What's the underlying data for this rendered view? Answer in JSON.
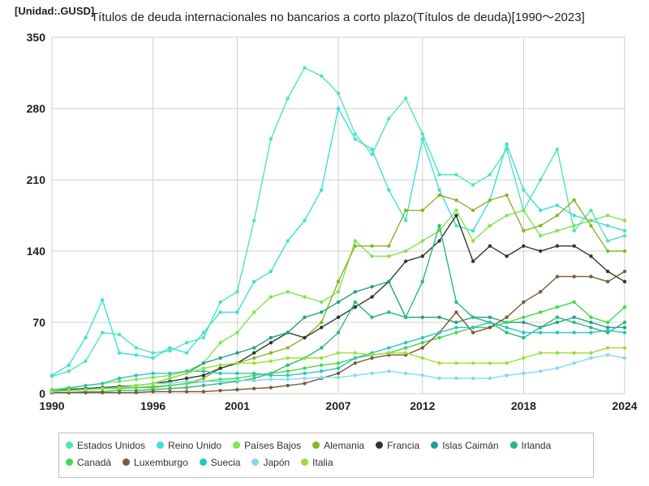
{
  "chart_data": {
    "type": "line",
    "unit_label": "[Unidad:.GUSD]",
    "title": "Títulos de deuda internacionales no bancarios a corto plazo(Títulos de deuda)[1990～2023]",
    "xlabel": "",
    "ylabel": "",
    "x_ticks": [
      "1990",
      "1996",
      "2001",
      "2007",
      "2012",
      "2018",
      "2024"
    ],
    "x_tick_values": [
      1990,
      1996,
      2001,
      2007,
      2012,
      2018,
      2024
    ],
    "y_ticks": [
      "0",
      "70",
      "140",
      "210",
      "280",
      "350"
    ],
    "y_tick_values": [
      0,
      70,
      140,
      210,
      280,
      350
    ],
    "xlim": [
      1990,
      2024
    ],
    "ylim": [
      0,
      350
    ],
    "grid": true,
    "legend_position": "bottom",
    "x": [
      1990,
      1991,
      1992,
      1993,
      1994,
      1995,
      1996,
      1997,
      1998,
      1999,
      2000,
      2001,
      2002,
      2003,
      2004,
      2005,
      2006,
      2007,
      2008,
      2009,
      2010,
      2011,
      2012,
      2013,
      2014,
      2015,
      2016,
      2017,
      2018,
      2019,
      2020,
      2021,
      2022,
      2023,
      2024
    ],
    "series": [
      {
        "name": "Estados Unidos",
        "color": "#4ee6b6",
        "values": [
          17,
          22,
          32,
          60,
          58,
          45,
          40,
          42,
          50,
          55,
          90,
          100,
          170,
          250,
          290,
          320,
          312,
          295,
          255,
          235,
          270,
          290,
          255,
          215,
          215,
          205,
          215,
          240,
          180,
          210,
          240,
          160,
          180,
          150,
          155
        ]
      },
      {
        "name": "Reino Unido",
        "color": "#3ee0d6",
        "values": [
          18,
          28,
          55,
          92,
          40,
          38,
          35,
          45,
          40,
          60,
          80,
          80,
          110,
          120,
          150,
          170,
          200,
          280,
          250,
          240,
          200,
          170,
          250,
          200,
          165,
          160,
          190,
          245,
          200,
          180,
          185,
          175,
          170,
          165,
          160
        ]
      },
      {
        "name": "Países Bajos",
        "color": "#7ee64e",
        "values": [
          4,
          6,
          8,
          10,
          12,
          14,
          16,
          18,
          22,
          30,
          50,
          60,
          80,
          95,
          100,
          95,
          90,
          100,
          150,
          135,
          135,
          140,
          150,
          160,
          180,
          150,
          165,
          175,
          180,
          155,
          160,
          165,
          170,
          175,
          170
        ]
      },
      {
        "name": "Alemania",
        "color": "#8ab52a",
        "values": [
          2,
          3,
          4,
          5,
          5,
          6,
          6,
          8,
          10,
          15,
          25,
          30,
          35,
          40,
          45,
          55,
          70,
          110,
          145,
          145,
          145,
          180,
          180,
          195,
          190,
          180,
          190,
          195,
          160,
          165,
          175,
          190,
          165,
          140,
          140
        ]
      },
      {
        "name": "Francia",
        "color": "#2b3a2b",
        "values": [
          3,
          4,
          5,
          6,
          7,
          8,
          10,
          12,
          15,
          18,
          25,
          30,
          40,
          50,
          60,
          55,
          65,
          75,
          85,
          95,
          110,
          130,
          135,
          150,
          175,
          130,
          145,
          135,
          145,
          140,
          145,
          145,
          135,
          120,
          110
        ]
      },
      {
        "name": "Islas Caimán",
        "color": "#23a08a",
        "values": [
          2,
          3,
          4,
          5,
          6,
          8,
          10,
          15,
          20,
          30,
          35,
          40,
          45,
          55,
          60,
          75,
          80,
          90,
          100,
          105,
          110,
          75,
          75,
          75,
          70,
          75,
          75,
          70,
          70,
          65,
          70,
          75,
          70,
          65,
          65
        ]
      },
      {
        "name": "Irlanda",
        "color": "#2eb87a",
        "values": [
          1,
          1,
          2,
          2,
          3,
          3,
          4,
          5,
          6,
          8,
          10,
          12,
          15,
          20,
          28,
          35,
          45,
          60,
          90,
          75,
          80,
          75,
          110,
          165,
          90,
          75,
          70,
          60,
          55,
          65,
          75,
          70,
          65,
          60,
          70
        ]
      },
      {
        "name": "Canadá",
        "color": "#44d94a",
        "values": [
          2,
          3,
          4,
          5,
          5,
          6,
          7,
          8,
          10,
          12,
          14,
          15,
          18,
          20,
          22,
          25,
          28,
          30,
          35,
          38,
          40,
          45,
          50,
          55,
          60,
          65,
          65,
          70,
          75,
          80,
          85,
          90,
          75,
          70,
          85
        ]
      },
      {
        "name": "Luxemburgo",
        "color": "#7a5a3a",
        "values": [
          1,
          1,
          1,
          1,
          1,
          1,
          2,
          2,
          2,
          2,
          3,
          4,
          5,
          6,
          8,
          10,
          15,
          20,
          30,
          35,
          38,
          38,
          45,
          60,
          80,
          60,
          65,
          75,
          90,
          100,
          115,
          115,
          115,
          110,
          120
        ]
      },
      {
        "name": "Suecia",
        "color": "#2cc3c8",
        "values": [
          3,
          5,
          8,
          10,
          15,
          18,
          20,
          20,
          22,
          22,
          20,
          20,
          20,
          18,
          18,
          20,
          22,
          25,
          35,
          40,
          45,
          50,
          55,
          60,
          65,
          65,
          70,
          65,
          60,
          60,
          60,
          60,
          60,
          62,
          60
        ]
      },
      {
        "name": "Japón",
        "color": "#86d7f0",
        "values": [
          2,
          3,
          4,
          5,
          6,
          8,
          10,
          10,
          12,
          12,
          12,
          13,
          13,
          14,
          14,
          15,
          16,
          16,
          18,
          20,
          22,
          20,
          18,
          15,
          15,
          15,
          15,
          18,
          20,
          22,
          25,
          30,
          35,
          38,
          35
        ]
      },
      {
        "name": "Italia",
        "color": "#9be03a",
        "values": [
          2,
          3,
          4,
          5,
          6,
          8,
          10,
          15,
          20,
          25,
          28,
          30,
          30,
          32,
          35,
          35,
          35,
          40,
          40,
          38,
          40,
          40,
          35,
          30,
          30,
          30,
          30,
          30,
          35,
          40,
          40,
          40,
          40,
          45,
          45
        ]
      }
    ]
  }
}
